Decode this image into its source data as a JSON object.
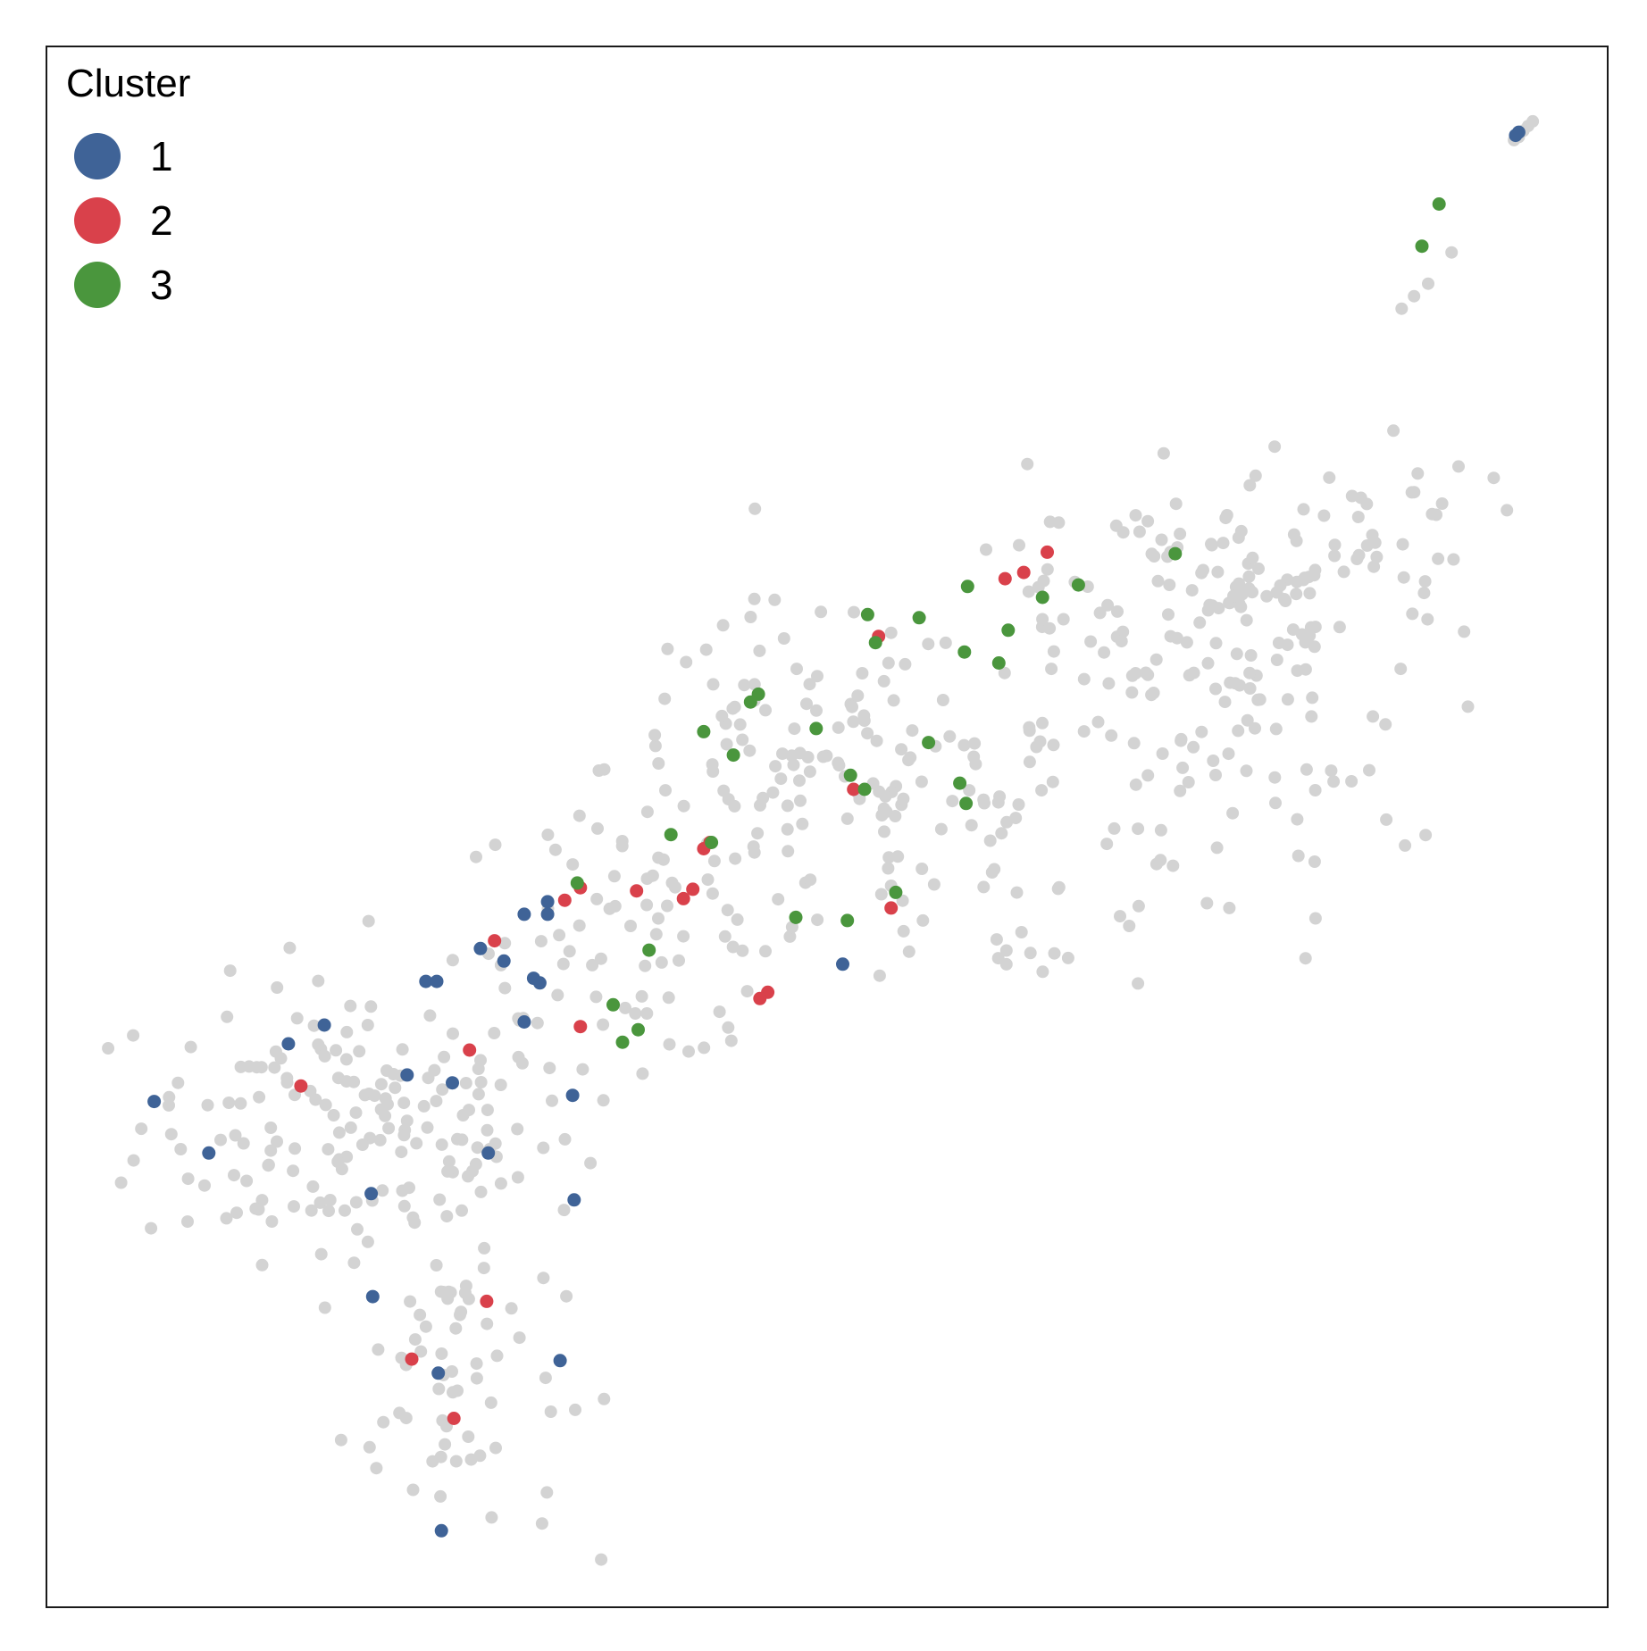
{
  "chart_data": {
    "type": "scatter",
    "title": "",
    "xlabel": "",
    "ylabel": "",
    "xlim": [
      0,
      100
    ],
    "ylim": [
      0,
      100
    ],
    "grid": false,
    "axes_ticks": false,
    "legend": {
      "title": "Cluster",
      "placement": "top-left",
      "entries": [
        "1",
        "2",
        "3"
      ]
    },
    "colors": {
      "background": "#d3d3d3",
      "1": "#3f6397",
      "2": "#d9414b",
      "3": "#4a963d"
    },
    "series": [
      {
        "name": "1",
        "color": "#3f6397",
        "points": [
          [
            94.3,
            94.5
          ],
          [
            94.1,
            94.3
          ],
          [
            6.9,
            32.4
          ],
          [
            10.4,
            29.1
          ],
          [
            15.5,
            36.1
          ],
          [
            17.8,
            37.3
          ],
          [
            23.1,
            34.1
          ],
          [
            26.0,
            33.6
          ],
          [
            24.3,
            40.1
          ],
          [
            25.0,
            40.1
          ],
          [
            27.8,
            42.2
          ],
          [
            29.3,
            41.4
          ],
          [
            30.6,
            44.4
          ],
          [
            32.1,
            45.2
          ],
          [
            32.1,
            44.4
          ],
          [
            31.2,
            40.3
          ],
          [
            31.6,
            40.0
          ],
          [
            30.6,
            37.5
          ],
          [
            33.7,
            32.8
          ],
          [
            28.3,
            29.1
          ],
          [
            20.8,
            26.5
          ],
          [
            20.9,
            19.9
          ],
          [
            33.8,
            26.1
          ],
          [
            25.1,
            15.0
          ],
          [
            32.9,
            15.8
          ],
          [
            25.3,
            4.9
          ],
          [
            51.0,
            41.2
          ]
        ]
      },
      {
        "name": "2",
        "color": "#d9414b",
        "points": [
          [
            64.1,
            67.6
          ],
          [
            62.6,
            66.3
          ],
          [
            61.4,
            65.9
          ],
          [
            53.3,
            62.2
          ],
          [
            42.5,
            49.0
          ],
          [
            42.1,
            48.6
          ],
          [
            34.2,
            46.1
          ],
          [
            33.2,
            45.3
          ],
          [
            37.8,
            45.9
          ],
          [
            40.8,
            45.4
          ],
          [
            41.4,
            46.0
          ],
          [
            54.1,
            44.8
          ],
          [
            28.7,
            42.7
          ],
          [
            46.2,
            39.4
          ],
          [
            34.2,
            37.2
          ],
          [
            27.1,
            35.7
          ],
          [
            16.3,
            33.4
          ],
          [
            28.2,
            19.6
          ],
          [
            23.4,
            15.9
          ],
          [
            26.1,
            12.1
          ],
          [
            51.7,
            52.4
          ],
          [
            45.7,
            39.0
          ]
        ]
      },
      {
        "name": "3",
        "color": "#4a963d",
        "points": [
          [
            88.1,
            87.2
          ],
          [
            72.3,
            67.5
          ],
          [
            59.0,
            65.4
          ],
          [
            66.1,
            65.5
          ],
          [
            63.8,
            64.7
          ],
          [
            52.6,
            63.6
          ],
          [
            55.9,
            63.4
          ],
          [
            53.1,
            61.8
          ],
          [
            58.8,
            61.2
          ],
          [
            61.0,
            60.5
          ],
          [
            45.6,
            58.5
          ],
          [
            45.1,
            58.0
          ],
          [
            42.1,
            56.1
          ],
          [
            44.0,
            54.6
          ],
          [
            49.3,
            56.3
          ],
          [
            51.5,
            53.3
          ],
          [
            52.4,
            52.4
          ],
          [
            56.5,
            55.4
          ],
          [
            58.5,
            52.8
          ],
          [
            58.9,
            51.5
          ],
          [
            40.0,
            49.5
          ],
          [
            42.6,
            49.0
          ],
          [
            34.0,
            46.4
          ],
          [
            54.4,
            45.8
          ],
          [
            48.0,
            44.2
          ],
          [
            38.6,
            42.1
          ],
          [
            51.3,
            44.0
          ],
          [
            36.3,
            38.6
          ],
          [
            37.9,
            37.0
          ],
          [
            36.9,
            36.2
          ],
          [
            61.6,
            62.6
          ],
          [
            89.2,
            89.9
          ]
        ]
      }
    ]
  }
}
